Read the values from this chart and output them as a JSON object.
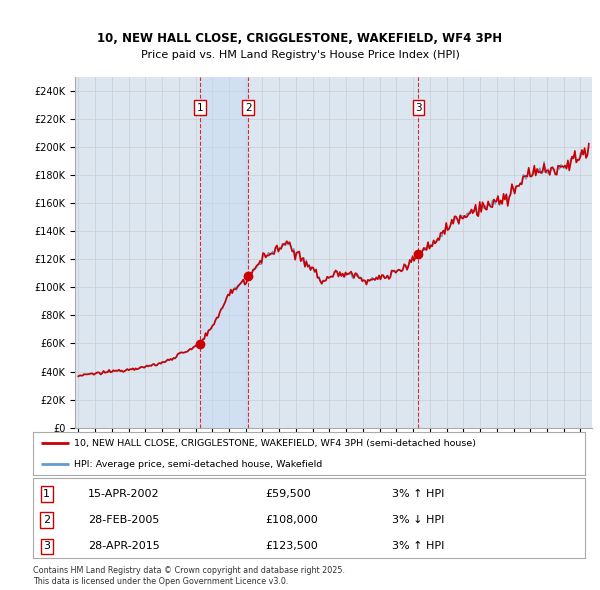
{
  "title_line1": "10, NEW HALL CLOSE, CRIGGLESTONE, WAKEFIELD, WF4 3PH",
  "title_line2": "Price paid vs. HM Land Registry's House Price Index (HPI)",
  "ylim": [
    0,
    250000
  ],
  "ytick_step": 20000,
  "x_start_year": 1995,
  "x_end_year": 2025,
  "sale_dates": [
    2002.29,
    2005.16,
    2015.32
  ],
  "sale_prices": [
    59500,
    108000,
    123500
  ],
  "sale_labels": [
    "1",
    "2",
    "3"
  ],
  "sale_info": [
    {
      "label": "1",
      "date": "15-APR-2002",
      "price": "£59,500",
      "hpi": "3% ↑ HPI"
    },
    {
      "label": "2",
      "date": "28-FEB-2005",
      "price": "£108,000",
      "hpi": "3% ↓ HPI"
    },
    {
      "label": "3",
      "date": "28-APR-2015",
      "price": "£123,500",
      "hpi": "3% ↑ HPI"
    }
  ],
  "legend_entries": [
    "10, NEW HALL CLOSE, CRIGGLESTONE, WAKEFIELD, WF4 3PH (semi-detached house)",
    "HPI: Average price, semi-detached house, Wakefield"
  ],
  "footer_text": "Contains HM Land Registry data © Crown copyright and database right 2025.\nThis data is licensed under the Open Government Licence v3.0.",
  "price_paid_color": "#cc0000",
  "hpi_color": "#6699cc",
  "hpi_fill_color": "#dce6f1",
  "sale_marker_color": "#cc0000",
  "vline_color": "#cc0000",
  "grid_color": "#cccccc",
  "plot_bg_color": "#dce6f1",
  "annotation_box_color": "#cc0000",
  "between_sales_fill": "#c5d9f1"
}
